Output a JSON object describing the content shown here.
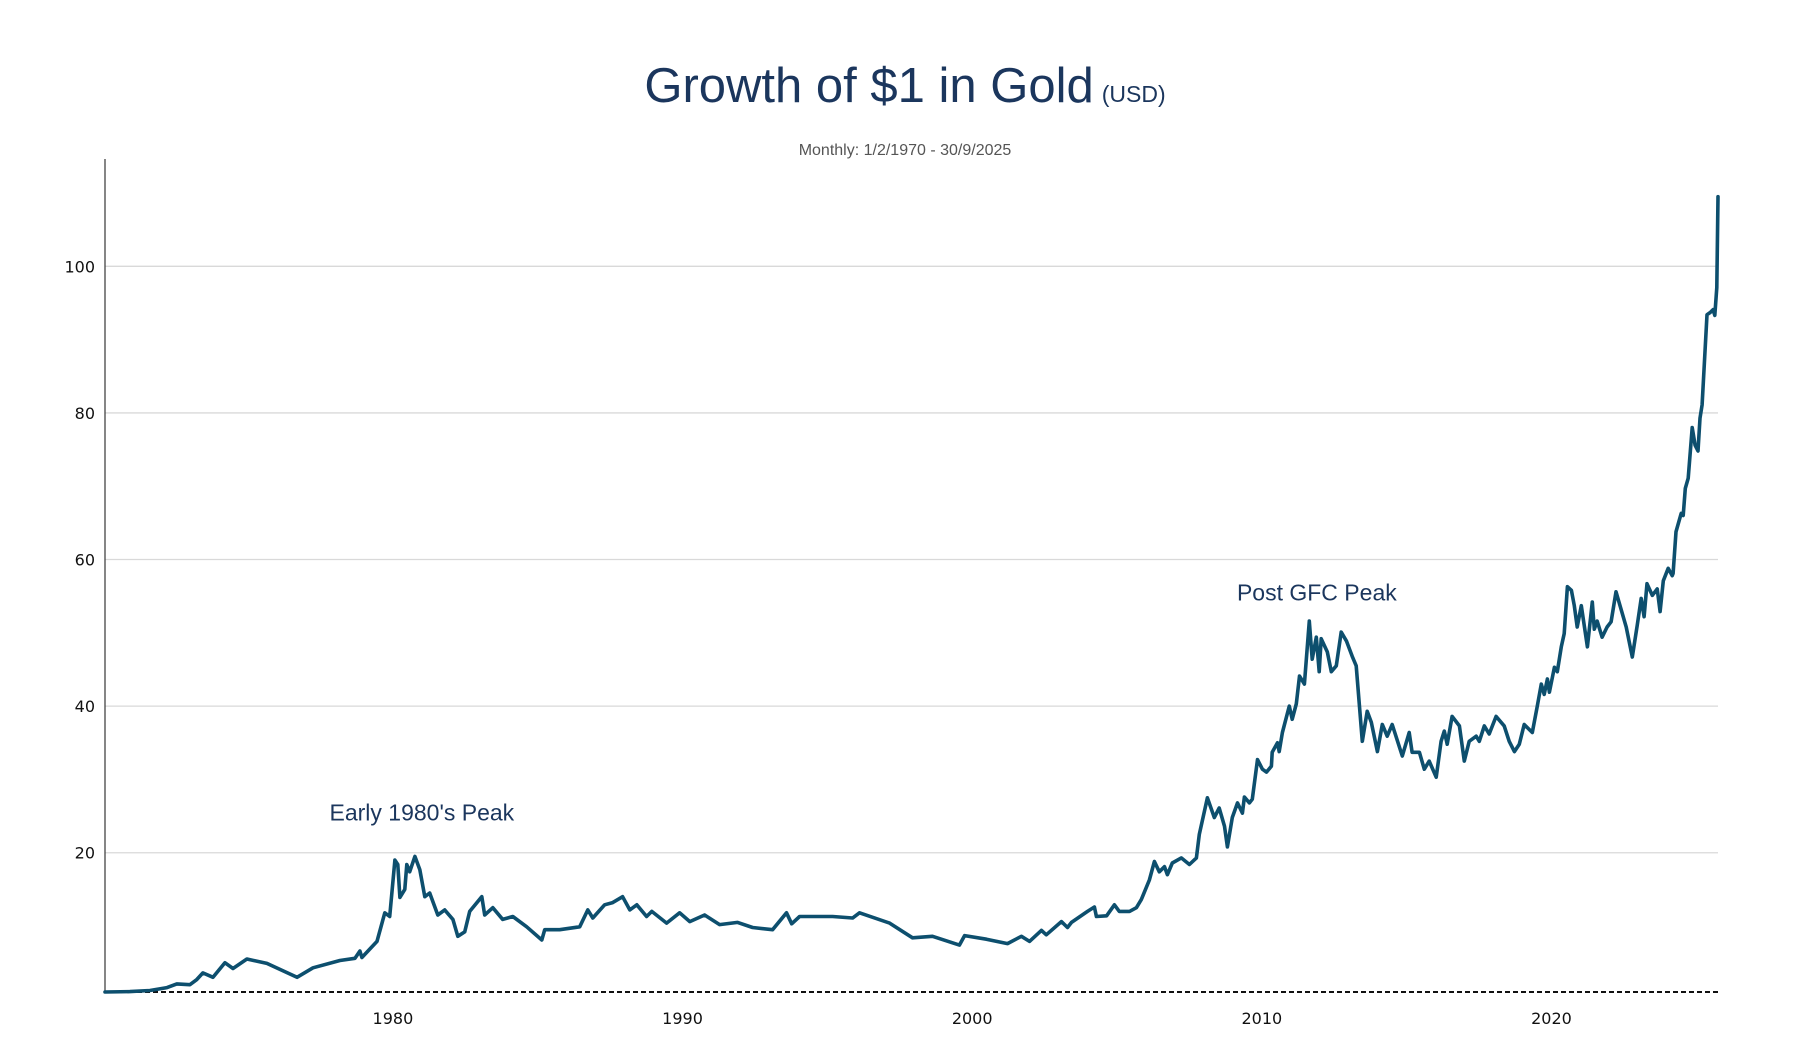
{
  "chart_data": {
    "type": "line",
    "title": "Growth of $1 in Gold",
    "title_unit": "(USD)",
    "subtitle": "Monthly: 1/2/1970 - 30/9/2025",
    "xlabel": "",
    "ylabel": "",
    "xlim": [
      1970.06,
      2025.75
    ],
    "ylim": [
      1,
      113
    ],
    "grid": true,
    "baseline": 1,
    "y_ticks": [
      20,
      40,
      60,
      80,
      100
    ],
    "x_ticks": [
      1980,
      1990,
      2000,
      2010,
      2020
    ],
    "annotations": [
      {
        "text": "Early 1980's Peak",
        "x": 1981.0,
        "y": 25.5
      },
      {
        "text": "Post GFC Peak",
        "x": 2011.9,
        "y": 55.5
      }
    ],
    "series": [
      {
        "name": "Growth of $1 in Gold (USD)",
        "color": "#0d4f6e",
        "x": [
          1970.06,
          1970.92,
          1971.61,
          1972.2,
          1972.54,
          1972.99,
          1973.23,
          1973.44,
          1973.79,
          1974.2,
          1974.48,
          1974.96,
          1975.65,
          1976.69,
          1977.24,
          1978.17,
          1978.69,
          1978.86,
          1978.93,
          1979.45,
          1979.72,
          1979.89,
          1980.07,
          1980.17,
          1980.24,
          1980.41,
          1980.48,
          1980.58,
          1980.76,
          1980.93,
          1981.1,
          1981.27,
          1981.55,
          1981.79,
          1982.07,
          1982.24,
          1982.48,
          1982.65,
          1983.07,
          1983.17,
          1983.45,
          1983.79,
          1984.14,
          1984.62,
          1985.14,
          1985.24,
          1985.76,
          1986.45,
          1986.73,
          1986.9,
          1987.31,
          1987.59,
          1987.93,
          1988.18,
          1988.42,
          1988.76,
          1988.94,
          1989.45,
          1989.9,
          1990.25,
          1990.76,
          1991.28,
          1991.9,
          1992.42,
          1993.11,
          1993.59,
          1993.77,
          1994.04,
          1995.18,
          1995.87,
          1996.11,
          1997.15,
          1997.94,
          1998.63,
          1999.56,
          1999.74,
          2000.49,
          2001.22,
          2001.7,
          2001.98,
          2002.39,
          2002.56,
          2003.08,
          2003.29,
          2003.43,
          2003.98,
          2004.22,
          2004.29,
          2004.64,
          2004.91,
          2005.08,
          2005.43,
          2005.67,
          2005.84,
          2006.12,
          2006.29,
          2006.46,
          2006.64,
          2006.74,
          2006.91,
          2007.22,
          2007.5,
          2007.74,
          2007.84,
          2008.12,
          2008.36,
          2008.53,
          2008.71,
          2008.81,
          2008.98,
          2009.16,
          2009.33,
          2009.4,
          2009.57,
          2009.67,
          2009.85,
          2010.02,
          2010.16,
          2010.33,
          2010.36,
          2010.54,
          2010.6,
          2010.71,
          2010.95,
          2011.05,
          2011.19,
          2011.3,
          2011.47,
          2011.64,
          2011.74,
          2011.88,
          2011.98,
          2012.05,
          2012.26,
          2012.4,
          2012.57,
          2012.74,
          2012.92,
          2013.12,
          2013.26,
          2013.47,
          2013.64,
          2013.78,
          2013.99,
          2014.16,
          2014.33,
          2014.5,
          2014.85,
          2015.09,
          2015.19,
          2015.44,
          2015.61,
          2015.78,
          2016.02,
          2016.19,
          2016.3,
          2016.4,
          2016.57,
          2016.82,
          2016.99,
          2017.16,
          2017.4,
          2017.51,
          2017.68,
          2017.85,
          2018.09,
          2018.37,
          2018.54,
          2018.72,
          2018.89,
          2019.06,
          2019.34,
          2019.51,
          2019.65,
          2019.75,
          2019.86,
          2019.93,
          2020.1,
          2020.2,
          2020.34,
          2020.44,
          2020.55,
          2020.69,
          2020.79,
          2020.89,
          2021.03,
          2021.2,
          2021.24,
          2021.41,
          2021.48,
          2021.58,
          2021.75,
          2021.92,
          2022.06,
          2022.23,
          2022.58,
          2022.79,
          2022.96,
          2023.1,
          2023.2,
          2023.3,
          2023.48,
          2023.65,
          2023.75,
          2023.86,
          2024.03,
          2024.17,
          2024.2,
          2024.3,
          2024.48,
          2024.55,
          2024.62,
          2024.72,
          2024.86,
          2024.96,
          2025.06,
          2025.13,
          2025.2,
          2025.37,
          2025.48,
          2025.58,
          2025.64,
          2025.71,
          2025.75
        ],
        "values": [
          1.0,
          1.05,
          1.2,
          1.6,
          2.1,
          2.0,
          2.7,
          3.6,
          3.0,
          5.0,
          4.2,
          5.5,
          4.9,
          3.0,
          4.3,
          5.3,
          5.6,
          6.6,
          5.7,
          7.9,
          11.8,
          11.3,
          19.0,
          18.4,
          13.9,
          15.0,
          18.4,
          17.4,
          19.5,
          17.7,
          14.0,
          14.5,
          11.5,
          12.2,
          10.9,
          8.6,
          9.2,
          12.0,
          14.0,
          11.5,
          12.5,
          10.9,
          11.3,
          9.9,
          8.1,
          9.5,
          9.5,
          9.9,
          12.2,
          11.1,
          12.9,
          13.2,
          14.0,
          12.2,
          12.9,
          11.3,
          12.0,
          10.4,
          11.8,
          10.6,
          11.5,
          10.2,
          10.5,
          9.8,
          9.5,
          11.8,
          10.3,
          11.3,
          11.3,
          11.1,
          11.8,
          10.4,
          8.4,
          8.6,
          7.4,
          8.7,
          8.2,
          7.6,
          8.6,
          7.9,
          9.4,
          8.8,
          10.6,
          9.8,
          10.5,
          12.0,
          12.6,
          11.3,
          11.4,
          12.9,
          12.0,
          12.0,
          12.5,
          13.6,
          16.3,
          18.8,
          17.4,
          18.1,
          17.0,
          18.6,
          19.3,
          18.4,
          19.3,
          22.5,
          27.5,
          24.8,
          26.1,
          23.6,
          20.8,
          24.8,
          26.8,
          25.4,
          27.6,
          26.8,
          27.3,
          32.7,
          31.4,
          31.0,
          31.8,
          33.7,
          35.0,
          33.8,
          36.4,
          40.0,
          38.2,
          40.3,
          44.1,
          43.0,
          51.6,
          46.4,
          49.4,
          44.7,
          49.2,
          47.4,
          44.7,
          45.5,
          50.1,
          48.9,
          46.8,
          45.5,
          35.2,
          39.3,
          37.8,
          33.8,
          37.5,
          35.9,
          37.5,
          33.2,
          36.4,
          33.7,
          33.7,
          31.4,
          32.5,
          30.3,
          35.2,
          36.6,
          34.8,
          38.6,
          37.3,
          32.5,
          35.2,
          35.9,
          35.2,
          37.3,
          36.2,
          38.6,
          37.3,
          35.2,
          33.8,
          34.8,
          37.5,
          36.4,
          40.0,
          43.0,
          41.6,
          43.7,
          41.9,
          45.3,
          44.7,
          48.1,
          49.9,
          56.3,
          55.8,
          53.7,
          50.8,
          53.7,
          49.2,
          48.1,
          54.2,
          50.5,
          51.6,
          49.4,
          50.8,
          51.5,
          55.6,
          50.8,
          46.7,
          51.0,
          54.7,
          52.2,
          56.7,
          55.1,
          56.0,
          52.9,
          57.1,
          58.8,
          57.8,
          58.1,
          63.8,
          66.3,
          66.0,
          69.7,
          71.1,
          78.0,
          75.6,
          74.8,
          79.3,
          81.1,
          93.4,
          93.7,
          94.1,
          93.3,
          97.1,
          109.5
        ]
      }
    ]
  }
}
